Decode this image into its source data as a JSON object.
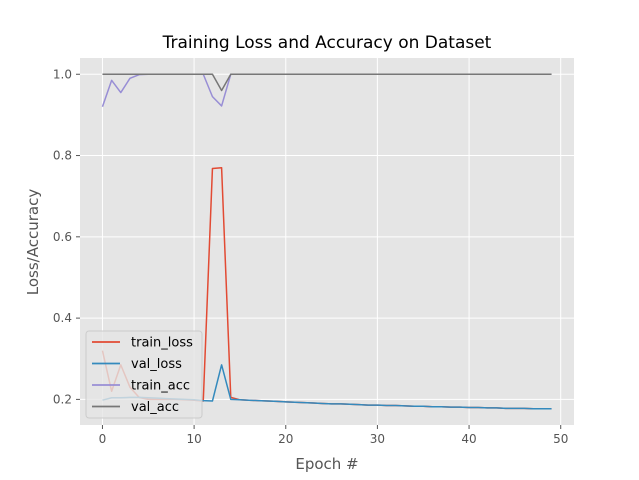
{
  "colors": {
    "train_loss": "#e24a33",
    "val_loss": "#348abd",
    "train_acc": "#988ed5",
    "val_acc": "#777777",
    "plot_bg": "#e5e5e5",
    "grid": "#ffffff"
  },
  "chart_data": {
    "type": "line",
    "title": "Training Loss and Accuracy on Dataset",
    "xlabel": "Epoch #",
    "ylabel": "Loss/Accuracy",
    "xlim": [
      -2.45,
      51.45
    ],
    "ylim": [
      0.137,
      1.04
    ],
    "xticks": [
      0,
      10,
      20,
      30,
      40,
      50
    ],
    "xtick_labels": [
      "0",
      "10",
      "20",
      "30",
      "40",
      "50"
    ],
    "yticks": [
      0.2,
      0.4,
      0.6,
      0.8,
      1.0
    ],
    "ytick_labels": [
      "0.2",
      "0.4",
      "0.6",
      "0.8",
      "1.0"
    ],
    "grid": true,
    "legend_position": "lower-left",
    "x": [
      0,
      1,
      2,
      3,
      4,
      5,
      6,
      7,
      8,
      9,
      10,
      11,
      12,
      13,
      14,
      15,
      16,
      17,
      18,
      19,
      20,
      21,
      22,
      23,
      24,
      25,
      26,
      27,
      28,
      29,
      30,
      31,
      32,
      33,
      34,
      35,
      36,
      37,
      38,
      39,
      40,
      41,
      42,
      43,
      44,
      45,
      46,
      47,
      48,
      49
    ],
    "series": [
      {
        "name": "train_loss",
        "color_key": "train_loss",
        "values": [
          0.32,
          0.22,
          0.285,
          0.23,
          0.205,
          0.2,
          0.2,
          0.2,
          0.2,
          0.199,
          0.198,
          0.196,
          0.768,
          0.77,
          0.205,
          0.199,
          0.198,
          0.197,
          0.196,
          0.195,
          0.194,
          0.193,
          0.192,
          0.191,
          0.19,
          0.189,
          0.189,
          0.188,
          0.187,
          0.186,
          0.186,
          0.185,
          0.185,
          0.184,
          0.183,
          0.183,
          0.182,
          0.182,
          0.181,
          0.181,
          0.18,
          0.18,
          0.179,
          0.179,
          0.178,
          0.178,
          0.178,
          0.177,
          0.177,
          0.177
        ]
      },
      {
        "name": "val_loss",
        "color_key": "val_loss",
        "values": [
          0.198,
          0.204,
          0.204,
          0.205,
          0.205,
          0.204,
          0.203,
          0.202,
          0.201,
          0.2,
          0.199,
          0.197,
          0.196,
          0.285,
          0.2,
          0.199,
          0.198,
          0.197,
          0.196,
          0.195,
          0.194,
          0.193,
          0.192,
          0.191,
          0.19,
          0.189,
          0.189,
          0.188,
          0.187,
          0.186,
          0.186,
          0.185,
          0.185,
          0.184,
          0.183,
          0.183,
          0.182,
          0.182,
          0.181,
          0.181,
          0.18,
          0.18,
          0.179,
          0.179,
          0.178,
          0.178,
          0.178,
          0.177,
          0.177,
          0.177
        ]
      },
      {
        "name": "train_acc",
        "color_key": "train_acc",
        "values": [
          0.92,
          0.985,
          0.955,
          0.99,
          0.999,
          1.0,
          1.0,
          1.0,
          1.0,
          1.0,
          1.0,
          1.0,
          0.945,
          0.922,
          1.0,
          1.0,
          1.0,
          1.0,
          1.0,
          1.0,
          1.0,
          1.0,
          1.0,
          1.0,
          1.0,
          1.0,
          1.0,
          1.0,
          1.0,
          1.0,
          1.0,
          1.0,
          1.0,
          1.0,
          1.0,
          1.0,
          1.0,
          1.0,
          1.0,
          1.0,
          1.0,
          1.0,
          1.0,
          1.0,
          1.0,
          1.0,
          1.0,
          1.0,
          1.0,
          1.0
        ]
      },
      {
        "name": "val_acc",
        "color_key": "val_acc",
        "values": [
          1.0,
          1.0,
          1.0,
          1.0,
          1.0,
          1.0,
          1.0,
          1.0,
          1.0,
          1.0,
          1.0,
          1.0,
          1.0,
          0.96,
          1.0,
          1.0,
          1.0,
          1.0,
          1.0,
          1.0,
          1.0,
          1.0,
          1.0,
          1.0,
          1.0,
          1.0,
          1.0,
          1.0,
          1.0,
          1.0,
          1.0,
          1.0,
          1.0,
          1.0,
          1.0,
          1.0,
          1.0,
          1.0,
          1.0,
          1.0,
          1.0,
          1.0,
          1.0,
          1.0,
          1.0,
          1.0,
          1.0,
          1.0,
          1.0,
          1.0
        ]
      }
    ]
  }
}
